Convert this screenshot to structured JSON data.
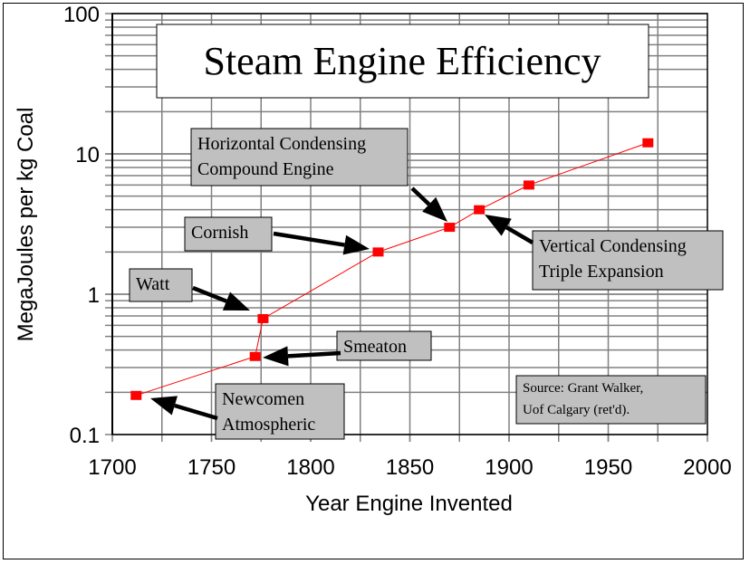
{
  "chart_data": {
    "type": "line",
    "title": "Steam Engine Efficiency",
    "xlabel": "Year Engine Invented",
    "ylabel": "MegaJoules per kg Coal",
    "xlim": [
      1700,
      2000
    ],
    "ylim": [
      0.1,
      100
    ],
    "yscale": "log",
    "grid": true,
    "x_ticks": [
      "1700",
      "1750",
      "1800",
      "1850",
      "1900",
      "1950",
      "2000"
    ],
    "y_ticks": [
      "0.1",
      "1",
      "10",
      "100"
    ],
    "series": [
      {
        "color": "#ff0000",
        "marker": "square",
        "x": [
          1712,
          1772,
          1776,
          1834,
          1870,
          1885,
          1910,
          1970
        ],
        "y": [
          0.19,
          0.36,
          0.67,
          2.0,
          3.0,
          4.0,
          6.0,
          12.0
        ]
      }
    ],
    "annotations": [
      {
        "lines": [
          "Newcomen",
          "Atmospheric"
        ],
        "x": 1712,
        "y": 0.19
      },
      {
        "lines": [
          "Smeaton"
        ],
        "x": 1772,
        "y": 0.36
      },
      {
        "lines": [
          "Watt"
        ],
        "x": 1776,
        "y": 0.67
      },
      {
        "lines": [
          "Cornish"
        ],
        "x": 1834,
        "y": 2.0
      },
      {
        "lines": [
          "Horizontal Condensing",
          "Compound Engine"
        ],
        "x": 1870,
        "y": 3.0
      },
      {
        "lines": [
          "Vertical Condensing",
          "Triple Expansion"
        ],
        "x": 1885,
        "y": 4.0
      }
    ],
    "source_note": [
      "Source: Grant Walker,",
      "Uof Calgary (ret'd)."
    ],
    "annotation_box_color": "#c0c0c0",
    "grid_color": "#808080"
  }
}
